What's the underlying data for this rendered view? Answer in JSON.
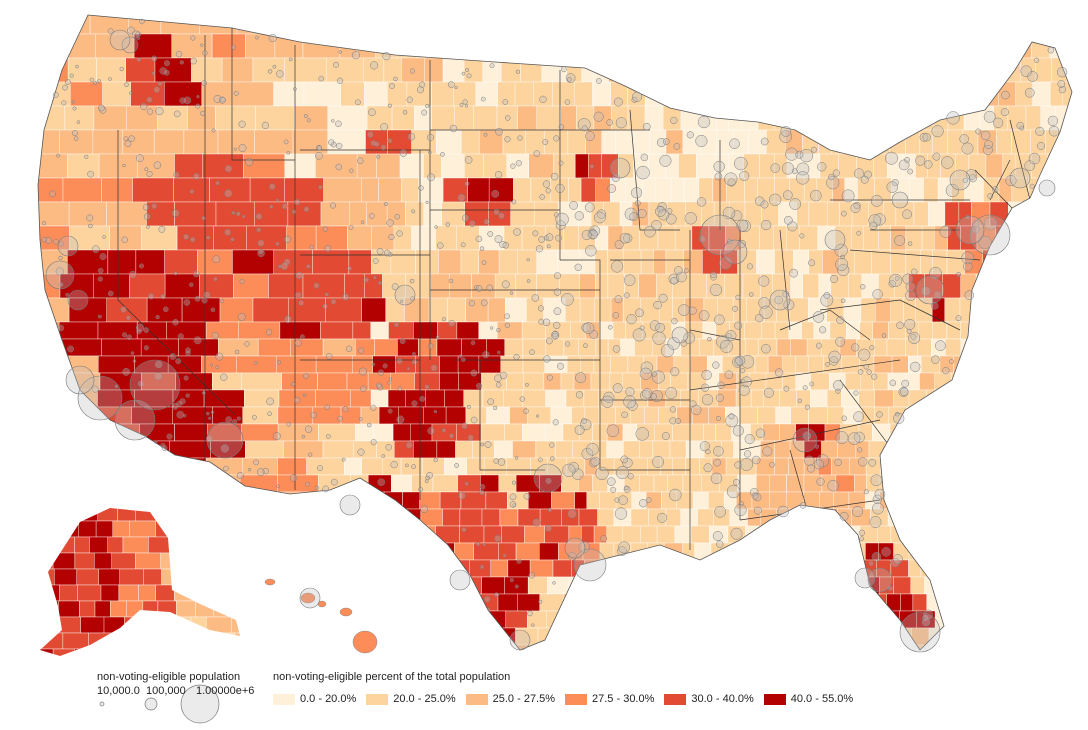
{
  "legend": {
    "size_title": "non-voting-eligible population",
    "size_items": [
      {
        "label": "10,000.0",
        "value": 10000
      },
      {
        "label": "100,000",
        "value": 100000
      },
      {
        "label": "1.00000e+6",
        "value": 1000000
      }
    ],
    "color_title": "non-voting-eligible percent of the total population",
    "color_items": [
      {
        "label": "0.0 - 20.0%",
        "color": "#fef0d9"
      },
      {
        "label": "20.0 - 25.0%",
        "color": "#fdd49e"
      },
      {
        "label": "25.0 - 27.5%",
        "color": "#fdbb84"
      },
      {
        "label": "27.5 - 30.0%",
        "color": "#fc8d59"
      },
      {
        "label": "30.0 - 40.0%",
        "color": "#e34a33"
      },
      {
        "label": "40.0 - 55.0%",
        "color": "#b30000"
      }
    ]
  },
  "colors": {
    "state_border": "#333333",
    "county_border": "#ffffff",
    "bubble_fill": "#bdbdbd",
    "bubble_stroke": "#7a7a7a"
  }
}
